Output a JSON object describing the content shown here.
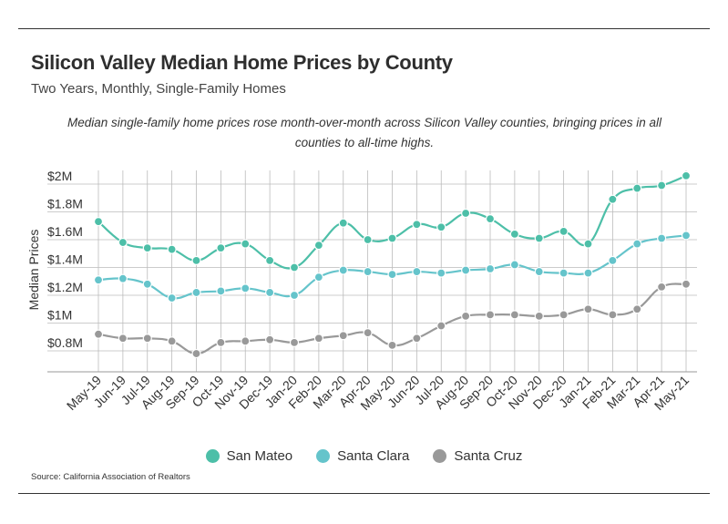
{
  "header": {
    "title": "Silicon Valley Median Home Prices by County",
    "subtitle": "Two Years, Monthly, Single-Family Homes",
    "annotation": "Median single-family home prices rose month-over-month across Silicon Valley counties, bringing prices in all counties to all-time highs."
  },
  "footer": {
    "source": "Source:  California Association of Realtors"
  },
  "chart_data": {
    "type": "line",
    "title": "Silicon Valley Median Home Prices by County",
    "subtitle": "Two Years, Monthly, Single-Family Homes",
    "xlabel": "",
    "ylabel": "Median Prices",
    "ylim": [
      700000,
      2050000
    ],
    "yticks": [
      800000,
      1000000,
      1200000,
      1400000,
      1600000,
      1800000,
      2000000
    ],
    "ytick_labels": [
      "$0.8M",
      "$1M",
      "$1.2M",
      "$1.4M",
      "$1.6M",
      "$1.8M",
      "$2M"
    ],
    "grid": true,
    "legend_position": "bottom",
    "categories": [
      "May-19",
      "Jun-19",
      "Jul-19",
      "Aug-19",
      "Sep-19",
      "Oct-19",
      "Nov-19",
      "Dec-19",
      "Jan-20",
      "Feb-20",
      "Mar-20",
      "Apr-20",
      "May-20",
      "Jun-20",
      "Jul-20",
      "Aug-20",
      "Sep-20",
      "Oct-20",
      "Nov-20",
      "Dec-20",
      "Jan-21",
      "Feb-21",
      "Mar-21",
      "Apr-21",
      "May-21"
    ],
    "series": [
      {
        "name": "San Mateo",
        "color": "#4dbfa8",
        "values": [
          1730000,
          1580000,
          1540000,
          1530000,
          1450000,
          1540000,
          1570000,
          1450000,
          1400000,
          1560000,
          1720000,
          1600000,
          1610000,
          1710000,
          1690000,
          1790000,
          1750000,
          1640000,
          1610000,
          1660000,
          1570000,
          1890000,
          1970000,
          1990000,
          2060000
        ]
      },
      {
        "name": "Santa Clara",
        "color": "#65c4cb",
        "values": [
          1310000,
          1320000,
          1280000,
          1180000,
          1220000,
          1230000,
          1250000,
          1220000,
          1200000,
          1330000,
          1380000,
          1370000,
          1350000,
          1370000,
          1360000,
          1380000,
          1390000,
          1420000,
          1370000,
          1360000,
          1360000,
          1450000,
          1570000,
          1610000,
          1630000
        ]
      },
      {
        "name": "Santa Cruz",
        "color": "#999999",
        "values": [
          920000,
          890000,
          890000,
          870000,
          780000,
          860000,
          870000,
          880000,
          860000,
          890000,
          910000,
          930000,
          840000,
          890000,
          980000,
          1050000,
          1060000,
          1060000,
          1050000,
          1060000,
          1100000,
          1060000,
          1100000,
          1260000,
          1280000
        ]
      }
    ]
  }
}
